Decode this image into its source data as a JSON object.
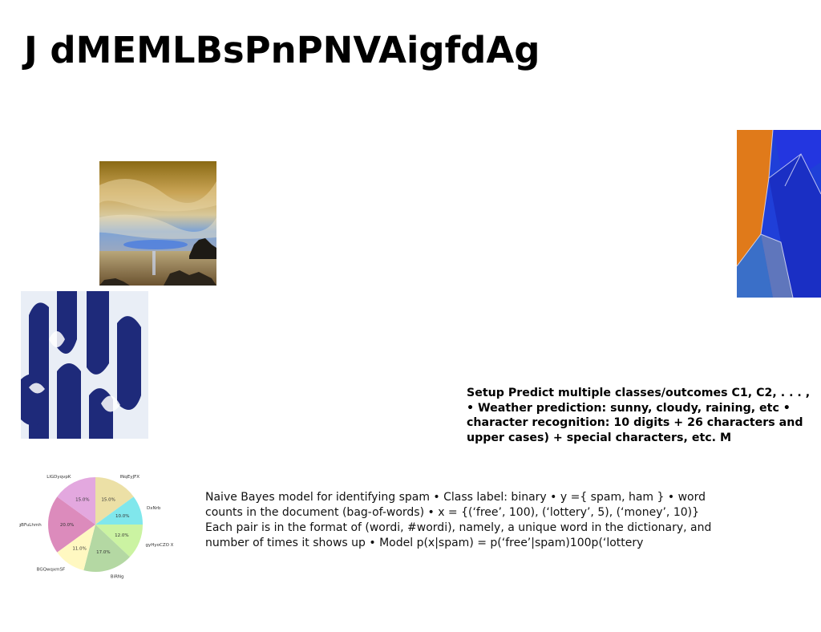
{
  "slide": {
    "title": "J dMEMLBsPnPNVAigfdAg",
    "setup_text": "Setup Predict multiple classes/outcomes C1, C2, . . . , • Weather prediction: sunny, cloudy, raining, etc • character recognition: 10 digits + 26 characters and upper cases) + special characters, etc. M",
    "naive_bayes_text": "Naive Bayes model for identifying spam • Class label: binary • y ={ spam, ham } • word counts in the document (bag-of-words) • x = {(‘free’, 100), (‘lottery’, 5), (‘money’, 10)} Each pair is in the format of (wordi, #wordi), namely, a unique word in the dictionary, and number of times it shows up • Model p(x|spam) = p(‘free’|spam)100p(‘lottery"
  },
  "chart_data": {
    "type": "pie",
    "categories": [
      "INqEyJFX",
      "DxNrb",
      "gyHyoCZO X",
      "BiRNg",
      "BGQwqxmSF",
      "gBFuLhmh",
      "LlGDyqvpK"
    ],
    "values": [
      15.0,
      10.0,
      12.0,
      17.0,
      11.0,
      20.0,
      15.0
    ],
    "value_labels": [
      "15.0%",
      "10.0%",
      "12.0%",
      "17.0%",
      "11.0%",
      "20.0%",
      "15.0%"
    ],
    "colors": [
      "#ece0a6",
      "#80e7ec",
      "#cbf3a2",
      "#b4d8a3",
      "#fff8c1",
      "#dc8bbc",
      "#e3a8df"
    ],
    "start_angle_deg": 90,
    "direction": "clockwise"
  }
}
